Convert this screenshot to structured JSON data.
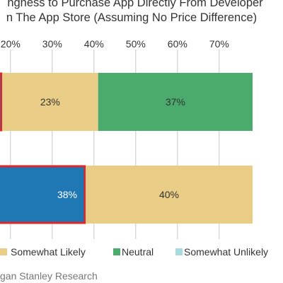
{
  "title_lines": [
    "ngness to Purchase App Directly From Developer",
    "n The App Store (Assuming No Price Difference)"
  ],
  "source": "gan Stanley Research",
  "colors": {
    "very_likely": "#1f77b4",
    "somewhat_likely": "#e9cc86",
    "neutral": "#4bab6c",
    "somewhat_unlikely": "#a8dbe0",
    "highlight_border": "#e0262b",
    "grid": "#c8c8c8",
    "bar_label_dark": "#333333",
    "bar_label_light": "#ffffff"
  },
  "legend": [
    {
      "label": "Somewhat Likely",
      "color": "#e9cc86"
    },
    {
      "label": "Neutral",
      "color": "#4bab6c"
    },
    {
      "label": "Somewhat Unlikely",
      "color": "#a8dbe0"
    }
  ],
  "chart_data": {
    "type": "bar",
    "orientation": "horizontal",
    "stacked": true,
    "title": "ngness to Purchase App Directly From Developer n The App Store (Assuming No Price Difference)",
    "x_ticks": [
      "20%",
      "30%",
      "40%",
      "50%",
      "60%",
      "70%"
    ],
    "x_tick_values": [
      20,
      30,
      40,
      50,
      60,
      70
    ],
    "grid": true,
    "legend_position": "bottom",
    "bars": [
      {
        "segments": [
          {
            "series": "very_likely",
            "value": 18,
            "label": "",
            "highlight": true
          },
          {
            "series": "somewhat_likely",
            "value": 23,
            "label": "23%"
          },
          {
            "series": "neutral",
            "value": 37,
            "label": "37%"
          }
        ]
      },
      {
        "segments": [
          {
            "series": "very_likely",
            "value": 38,
            "label": "38%",
            "highlight": true
          },
          {
            "series": "somewhat_likely",
            "value": 40,
            "label": "40%"
          }
        ]
      }
    ]
  }
}
